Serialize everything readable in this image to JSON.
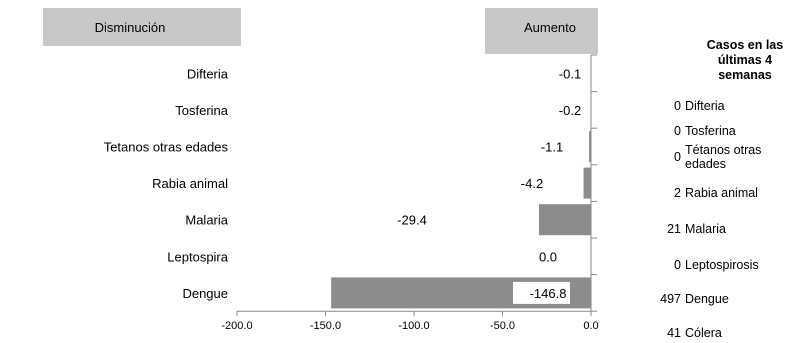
{
  "chart_data": {
    "type": "bar",
    "orientation": "horizontal",
    "categories": [
      "Difteria",
      "Tosferina",
      "Tetanos otras edades",
      "Rabia animal",
      "Malaria",
      "Leptospira",
      "Dengue"
    ],
    "values": [
      -0.1,
      -0.2,
      -1.1,
      -4.2,
      -29.4,
      0.0,
      -146.8
    ],
    "value_labels": [
      "-0.1",
      "-0.2",
      "-1.1",
      "-4.2",
      "-29.4",
      "0.0",
      "-146.8"
    ],
    "xlim": [
      -200,
      0
    ],
    "xticks": [
      "-200.0",
      "-150.0",
      "-100.0",
      "-50.0",
      "0.0"
    ],
    "decrease_label": "Disminución",
    "increase_label": "Aumento",
    "grid": false,
    "bar_color": "#8c8c8c",
    "header_box_color": "#c8c8c8"
  },
  "side_table": {
    "title": "Casos en las últimas 4 semanas",
    "rows": [
      {
        "count": "0",
        "name": "Difteria"
      },
      {
        "count": "0",
        "name": "Tosferina"
      },
      {
        "count": "0",
        "name": "Tétanos otras edades"
      },
      {
        "count": "2",
        "name": "Rabia animal"
      },
      {
        "count": "21",
        "name": "Malaria"
      },
      {
        "count": "0",
        "name": "Leptospirosis"
      },
      {
        "count": "497",
        "name": "Dengue"
      },
      {
        "count": "41",
        "name": "Cólera"
      }
    ]
  }
}
